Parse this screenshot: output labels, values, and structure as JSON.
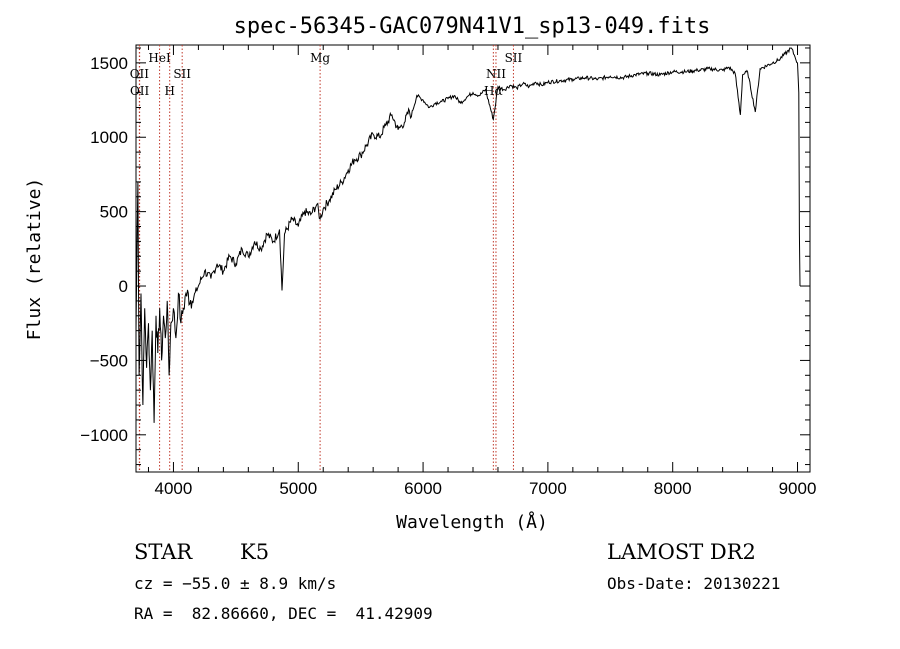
{
  "chart_data": {
    "type": "line",
    "title": "spec-56345-GAC079N41V1_sp13-049.fits",
    "xlabel": "Wavelength (Å)",
    "ylabel": "Flux (relative)",
    "xlim": [
      3700,
      9100
    ],
    "ylim": [
      -1250,
      1620
    ],
    "xticks": [
      4000,
      5000,
      6000,
      7000,
      8000,
      9000
    ],
    "xtick_labels": [
      "4000",
      "5000",
      "6000",
      "7000",
      "8000",
      "9000"
    ],
    "yticks": [
      -1000,
      -500,
      0,
      500,
      1000,
      1500
    ],
    "ytick_labels": [
      "−1000",
      "−500",
      "0",
      "500",
      "1000",
      "1500"
    ],
    "line_color": "#000000",
    "marker_color": "#c0392b",
    "grid": false,
    "lines": [
      {
        "label": "OII",
        "x": 3727,
        "row": 2
      },
      {
        "label": "OII",
        "x": 3729,
        "row": 3
      },
      {
        "label": "HeI",
        "x": 3889,
        "row": 1
      },
      {
        "label": "H",
        "x": 3970,
        "row": 3
      },
      {
        "label": "SII",
        "x": 4070,
        "row": 2
      },
      {
        "label": "Mg",
        "x": 5175,
        "row": 1
      },
      {
        "label": "NII",
        "x": 6584,
        "row": 2
      },
      {
        "label": "Hα",
        "x": 6563,
        "row": 3
      },
      {
        "label": "SII",
        "x": 6724,
        "row": 1
      }
    ],
    "spectrum": [
      [
        3700,
        -300
      ],
      [
        3715,
        700
      ],
      [
        3725,
        -600
      ],
      [
        3740,
        -50
      ],
      [
        3755,
        -800
      ],
      [
        3770,
        -150
      ],
      [
        3785,
        -550
      ],
      [
        3800,
        -250
      ],
      [
        3815,
        -700
      ],
      [
        3830,
        -300
      ],
      [
        3845,
        -920
      ],
      [
        3860,
        -200
      ],
      [
        3875,
        -450
      ],
      [
        3890,
        -150
      ],
      [
        3905,
        -500
      ],
      [
        3920,
        -200
      ],
      [
        3935,
        -350
      ],
      [
        3950,
        -100
      ],
      [
        3965,
        -600
      ],
      [
        3980,
        -250
      ],
      [
        4000,
        -150
      ],
      [
        4020,
        -350
      ],
      [
        4040,
        -50
      ],
      [
        4060,
        -250
      ],
      [
        4080,
        -150
      ],
      [
        4100,
        -50
      ],
      [
        4150,
        -100
      ],
      [
        4200,
        0
      ],
      [
        4250,
        100
      ],
      [
        4300,
        50
      ],
      [
        4350,
        150
      ],
      [
        4400,
        100
      ],
      [
        4450,
        200
      ],
      [
        4500,
        150
      ],
      [
        4550,
        250
      ],
      [
        4600,
        200
      ],
      [
        4650,
        300
      ],
      [
        4700,
        250
      ],
      [
        4750,
        350
      ],
      [
        4800,
        300
      ],
      [
        4850,
        380
      ],
      [
        4870,
        -30
      ],
      [
        4890,
        350
      ],
      [
        4950,
        450
      ],
      [
        5000,
        400
      ],
      [
        5050,
        500
      ],
      [
        5100,
        480
      ],
      [
        5150,
        550
      ],
      [
        5175,
        450
      ],
      [
        5200,
        520
      ],
      [
        5250,
        580
      ],
      [
        5300,
        650
      ],
      [
        5350,
        700
      ],
      [
        5400,
        780
      ],
      [
        5450,
        850
      ],
      [
        5500,
        880
      ],
      [
        5550,
        950
      ],
      [
        5600,
        1020
      ],
      [
        5650,
        1000
      ],
      [
        5700,
        1080
      ],
      [
        5750,
        1150
      ],
      [
        5800,
        1050
      ],
      [
        5850,
        1100
      ],
      [
        5890,
        1180
      ],
      [
        5900,
        1130
      ],
      [
        5950,
        1280
      ],
      [
        6000,
        1250
      ],
      [
        6050,
        1200
      ],
      [
        6100,
        1230
      ],
      [
        6150,
        1240
      ],
      [
        6200,
        1260
      ],
      [
        6250,
        1280
      ],
      [
        6300,
        1230
      ],
      [
        6350,
        1270
      ],
      [
        6400,
        1300
      ],
      [
        6450,
        1280
      ],
      [
        6500,
        1320
      ],
      [
        6563,
        1120
      ],
      [
        6600,
        1340
      ],
      [
        6650,
        1320
      ],
      [
        6700,
        1350
      ],
      [
        6750,
        1330
      ],
      [
        6800,
        1360
      ],
      [
        6850,
        1340
      ],
      [
        6900,
        1370
      ],
      [
        6950,
        1350
      ],
      [
        7000,
        1370
      ],
      [
        7100,
        1380
      ],
      [
        7200,
        1390
      ],
      [
        7300,
        1400
      ],
      [
        7400,
        1390
      ],
      [
        7500,
        1410
      ],
      [
        7600,
        1400
      ],
      [
        7700,
        1420
      ],
      [
        7800,
        1430
      ],
      [
        7900,
        1420
      ],
      [
        8000,
        1440
      ],
      [
        8100,
        1440
      ],
      [
        8200,
        1450
      ],
      [
        8300,
        1460
      ],
      [
        8400,
        1450
      ],
      [
        8450,
        1470
      ],
      [
        8500,
        1430
      ],
      [
        8542,
        1150
      ],
      [
        8560,
        1420
      ],
      [
        8600,
        1440
      ],
      [
        8662,
        1170
      ],
      [
        8700,
        1460
      ],
      [
        8800,
        1500
      ],
      [
        8850,
        1520
      ],
      [
        8900,
        1560
      ],
      [
        8950,
        1600
      ],
      [
        8980,
        1540
      ],
      [
        9000,
        1500
      ],
      [
        9010,
        1300
      ],
      [
        9015,
        350
      ],
      [
        9020,
        0
      ]
    ]
  },
  "info": {
    "left_line1_a": "STAR",
    "left_line1_b": "K5",
    "left_line2": "cz = −55.0 ± 8.9 km/s",
    "left_line3": "RA =  82.86660, DEC =  41.42909",
    "right_line1": "LAMOST DR2",
    "right_line2": "Obs-Date: 20130221"
  }
}
